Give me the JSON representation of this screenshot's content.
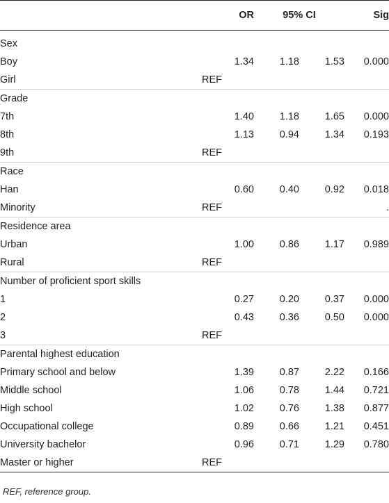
{
  "table": {
    "headers": {
      "label": "",
      "or": "OR",
      "ci": "95% CI",
      "sig": "Sig"
    },
    "groups": [
      {
        "name": "Sex",
        "rows": [
          {
            "label": "Boy",
            "or": "1.34",
            "lo": "1.18",
            "hi": "1.53",
            "sig": "0.000"
          },
          {
            "label": "Girl",
            "or": "REF",
            "lo": "",
            "hi": "",
            "sig": ""
          }
        ]
      },
      {
        "name": "Grade",
        "rows": [
          {
            "label": "7th",
            "or": "1.40",
            "lo": "1.18",
            "hi": "1.65",
            "sig": "0.000"
          },
          {
            "label": "8th",
            "or": "1.13",
            "lo": "0.94",
            "hi": "1.34",
            "sig": "0.193"
          },
          {
            "label": "9th",
            "or": "REF",
            "lo": "",
            "hi": "",
            "sig": ""
          }
        ]
      },
      {
        "name": "Race",
        "rows": [
          {
            "label": "Han",
            "or": "0.60",
            "lo": "0.40",
            "hi": "0.92",
            "sig": "0.018"
          },
          {
            "label": "Minority",
            "or": "REF",
            "lo": "",
            "hi": "",
            "sig": "."
          }
        ]
      },
      {
        "name": "Residence area",
        "rows": [
          {
            "label": "Urban",
            "or": "1.00",
            "lo": "0.86",
            "hi": "1.17",
            "sig": "0.989"
          },
          {
            "label": "Rural",
            "or": "REF",
            "lo": "",
            "hi": "",
            "sig": ""
          }
        ]
      },
      {
        "name": "Number of proficient sport skills",
        "rows": [
          {
            "label": "1",
            "or": "0.27",
            "lo": "0.20",
            "hi": "0.37",
            "sig": "0.000"
          },
          {
            "label": "2",
            "or": "0.43",
            "lo": "0.36",
            "hi": "0.50",
            "sig": "0.000"
          },
          {
            "label": "3",
            "or": "REF",
            "lo": "",
            "hi": "",
            "sig": ""
          }
        ]
      },
      {
        "name": "Parental highest education",
        "rows": [
          {
            "label": "Primary school and below",
            "or": "1.39",
            "lo": "0.87",
            "hi": "2.22",
            "sig": "0.166"
          },
          {
            "label": "Middle school",
            "or": "1.06",
            "lo": "0.78",
            "hi": "1.44",
            "sig": "0.721"
          },
          {
            "label": "High school",
            "or": "1.02",
            "lo": "0.76",
            "hi": "1.38",
            "sig": "0.877"
          },
          {
            "label": "Occupational college",
            "or": "0.89",
            "lo": "0.66",
            "hi": "1.21",
            "sig": "0.451"
          },
          {
            "label": "University bachelor",
            "or": "0.96",
            "lo": "0.71",
            "hi": "1.29",
            "sig": "0.780"
          },
          {
            "label": "Master or higher",
            "or": "REF",
            "lo": "",
            "hi": "",
            "sig": ""
          }
        ]
      }
    ]
  },
  "footnote": "REF, reference group."
}
